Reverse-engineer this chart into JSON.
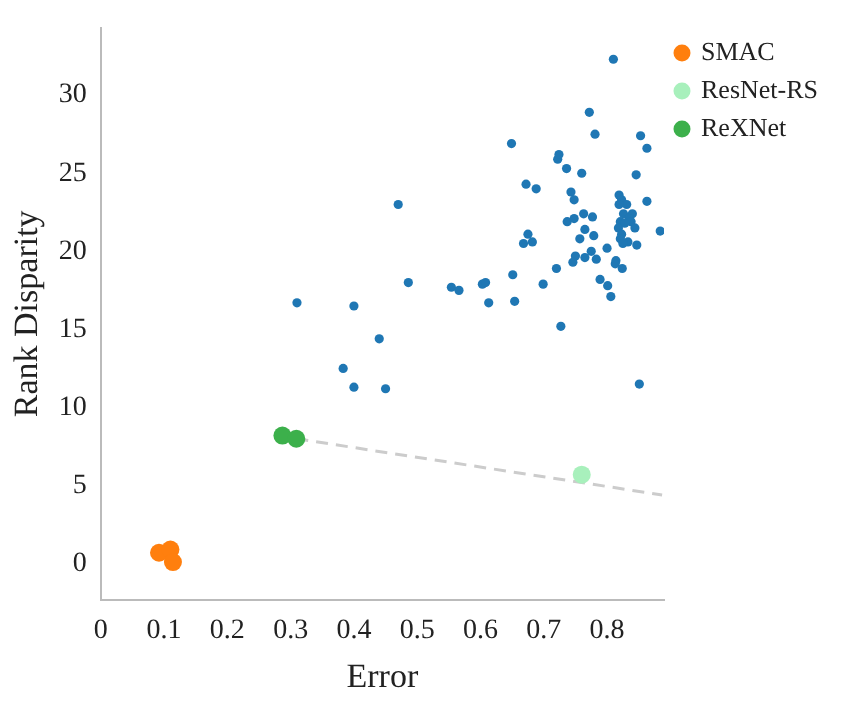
{
  "chart_data": {
    "type": "scatter",
    "xlabel": "Error",
    "ylabel": "Rank Disparity",
    "xlim": [
      0,
      0.89
    ],
    "ylim": [
      -2.3,
      34.3
    ],
    "xticks": [
      0,
      0.1,
      0.2,
      0.3,
      0.4,
      0.5,
      0.6,
      0.7,
      0.8
    ],
    "yticks": [
      0,
      5,
      10,
      15,
      20,
      25,
      30
    ],
    "grid": false,
    "legend": "top right",
    "marker": "circle",
    "series": [
      {
        "type": "line",
        "color": "#cccccc",
        "line_style": "dashed",
        "marker": "none",
        "x": [
          0.309,
          0.887
        ],
        "values": [
          8.0,
          4.4
        ]
      },
      {
        "color": "#1f77b4",
        "x": [
          0.31,
          0.4,
          0.47,
          0.486,
          0.554,
          0.566,
          0.44,
          0.383,
          0.4,
          0.45,
          0.603,
          0.608,
          0.613,
          0.654,
          0.651,
          0.699,
          0.72,
          0.727,
          0.649,
          0.672,
          0.688,
          0.675,
          0.682,
          0.668,
          0.722,
          0.724,
          0.736,
          0.76,
          0.743,
          0.748,
          0.737,
          0.748,
          0.763,
          0.777,
          0.765,
          0.779,
          0.757,
          0.775,
          0.765,
          0.783,
          0.75,
          0.746,
          0.8,
          0.789,
          0.801,
          0.806,
          0.814,
          0.813,
          0.824,
          0.772,
          0.781,
          0.81,
          0.853,
          0.863,
          0.846,
          0.863,
          0.819,
          0.823,
          0.831,
          0.819,
          0.826,
          0.84,
          0.835,
          0.838,
          0.821,
          0.844,
          0.828,
          0.818,
          0.823,
          0.821,
          0.833,
          0.825,
          0.847,
          0.884,
          0.851
        ],
        "values": [
          16.7,
          16.5,
          23.0,
          18.0,
          17.7,
          17.5,
          14.4,
          12.5,
          11.3,
          11.2,
          17.9,
          18.0,
          16.7,
          16.8,
          18.5,
          17.9,
          18.9,
          15.2,
          26.9,
          24.3,
          24.0,
          21.1,
          20.6,
          20.5,
          25.9,
          26.2,
          25.3,
          25.0,
          23.8,
          23.3,
          21.9,
          22.1,
          22.4,
          22.2,
          21.4,
          21.0,
          20.8,
          20.0,
          19.6,
          19.5,
          19.7,
          19.3,
          20.2,
          18.2,
          17.8,
          17.1,
          19.4,
          19.2,
          18.9,
          28.9,
          27.5,
          32.3,
          27.4,
          26.6,
          24.9,
          23.2,
          23.6,
          23.3,
          23.0,
          23.0,
          22.4,
          22.4,
          22.1,
          21.9,
          21.9,
          21.5,
          21.8,
          21.5,
          21.1,
          20.8,
          20.6,
          20.5,
          20.4,
          21.3,
          11.5
        ]
      },
      {
        "name": "SMAC",
        "color": "#ff7f0e",
        "x": [
          0.092,
          0.11,
          0.114
        ],
        "values": [
          0.7,
          0.9,
          0.1
        ]
      },
      {
        "name": "ResNet-RS",
        "color": "#a8f0bc",
        "x": [
          0.76
        ],
        "values": [
          5.7
        ]
      },
      {
        "name": "ReXNet",
        "color": "#3cb04b",
        "x": [
          0.287,
          0.309
        ],
        "values": [
          8.2,
          8.0
        ]
      }
    ]
  }
}
